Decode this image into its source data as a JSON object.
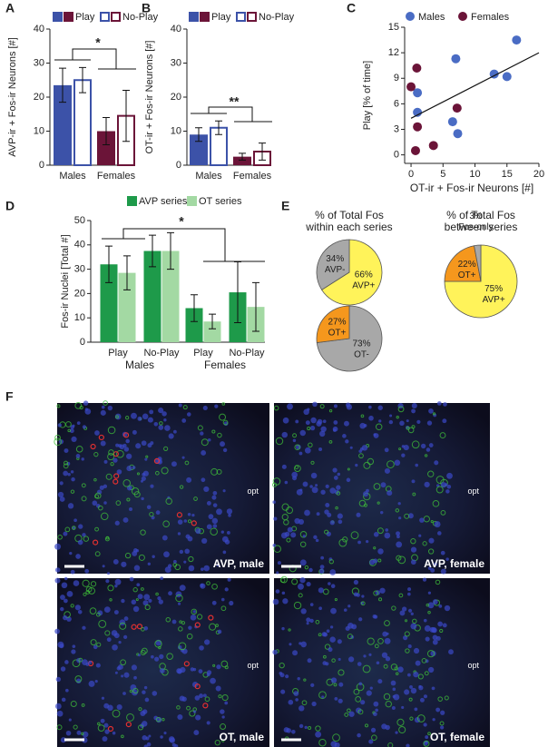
{
  "panel_labels": [
    "A",
    "B",
    "C",
    "D",
    "E",
    "F"
  ],
  "chart_data": [
    {
      "type": "bar",
      "ylabel": "AVP-ir + Fos-ir Neurons [#]",
      "categories": [
        "Males",
        "Females"
      ],
      "category_colors": [
        "#3c52a8",
        "#6b1438"
      ],
      "series": [
        {
          "name": "Play",
          "style": "filled",
          "values": [
            23.5,
            10
          ],
          "errors": [
            5,
            4
          ]
        },
        {
          "name": "No-Play",
          "style": "open",
          "values": [
            25,
            14.5
          ],
          "errors": [
            3.7,
            7.5
          ]
        }
      ],
      "ylim": [
        0,
        40
      ],
      "yticks": [
        0,
        10,
        20,
        30,
        40
      ],
      "annotation": "*"
    },
    {
      "type": "bar",
      "ylabel": "OT-ir + Fos-ir Neurons [#]",
      "categories": [
        "Males",
        "Females"
      ],
      "category_colors": [
        "#3c52a8",
        "#6b1438"
      ],
      "series": [
        {
          "name": "Play",
          "style": "filled",
          "values": [
            9,
            2.5
          ],
          "errors": [
            2,
            1
          ]
        },
        {
          "name": "No-Play",
          "style": "open",
          "values": [
            11,
            4
          ],
          "errors": [
            2,
            2.5
          ]
        }
      ],
      "ylim": [
        0,
        40
      ],
      "yticks": [
        0,
        10,
        20,
        30,
        40
      ],
      "annotation": "**"
    },
    {
      "type": "scatter",
      "xlabel": "OT-ir + Fos-ir Neurons [#]",
      "ylabel": "Play [% of time]",
      "series": [
        {
          "name": "Males",
          "color": "#4a6cc4",
          "x": [
            1,
            1,
            6.5,
            7,
            7.3,
            13,
            15,
            16.5
          ],
          "values": [
            7.3,
            5,
            3.9,
            11.3,
            2.5,
            9.5,
            9.2,
            13.5
          ]
        },
        {
          "name": "Females",
          "color": "#6b1438",
          "x": [
            0,
            0.9,
            1,
            0.7,
            3.5,
            7.2
          ],
          "values": [
            8,
            10.2,
            3.3,
            0.5,
            1.1,
            5.5
          ]
        }
      ],
      "trend_line": {
        "x": [
          0,
          20
        ],
        "values": [
          4.3,
          12
        ]
      },
      "xlim": [
        -1,
        20
      ],
      "xticks": [
        0,
        5,
        10,
        15,
        20
      ],
      "ylim": [
        -1,
        15
      ],
      "yticks": [
        0,
        3,
        6,
        9,
        12,
        15
      ]
    },
    {
      "type": "bar",
      "ylabel": "Fos-ir Nuclei [Total #]",
      "categories": [
        "Play",
        "No-Play",
        "Play",
        "No-Play"
      ],
      "groups": [
        "Males",
        "Females"
      ],
      "series": [
        {
          "name": "AVP series",
          "style": "filled",
          "color": "#1e9a4a",
          "values": [
            32,
            37.5,
            14,
            20.5
          ],
          "errors": [
            7.5,
            6.5,
            5.5,
            12.5
          ]
        },
        {
          "name": "OT series",
          "style": "filled",
          "color": "#a3d9a3",
          "values": [
            28.5,
            37.5,
            8.5,
            14.5
          ],
          "errors": [
            7,
            7.5,
            3,
            10
          ]
        }
      ],
      "ylim": [
        0,
        50
      ],
      "yticks": [
        0,
        10,
        20,
        30,
        40,
        50
      ],
      "annotation": "*"
    },
    {
      "type": "pie",
      "title_lines": [
        "% of Total Fos",
        "within each series"
      ],
      "categories": [
        "AVP+",
        "AVP-"
      ],
      "values": [
        66,
        34
      ],
      "value_labels": [
        "66%",
        "34%"
      ],
      "colors": [
        "#fff35a",
        "#a8a8a8"
      ]
    },
    {
      "type": "pie",
      "categories": [
        "OT-",
        "OT+"
      ],
      "values": [
        73,
        27
      ],
      "value_labels": [
        "73%",
        "27%"
      ],
      "colors": [
        "#a8a8a8",
        "#f5971d"
      ]
    },
    {
      "type": "pie",
      "title_lines": [
        "% of Total Fos",
        "between series"
      ],
      "categories": [
        "AVP+",
        "OT+",
        "Fos-only"
      ],
      "values": [
        75,
        22,
        3
      ],
      "value_labels": [
        "75%",
        "22%",
        "3%"
      ],
      "colors": [
        "#fff35a",
        "#f5971d",
        "#a8a8a8"
      ]
    }
  ],
  "micrographs": [
    {
      "label": "AVP, male",
      "region": "opt"
    },
    {
      "label": "AVP, female",
      "region": "opt"
    },
    {
      "label": "OT, male",
      "region": "opt"
    },
    {
      "label": "OT, female",
      "region": "opt"
    }
  ]
}
